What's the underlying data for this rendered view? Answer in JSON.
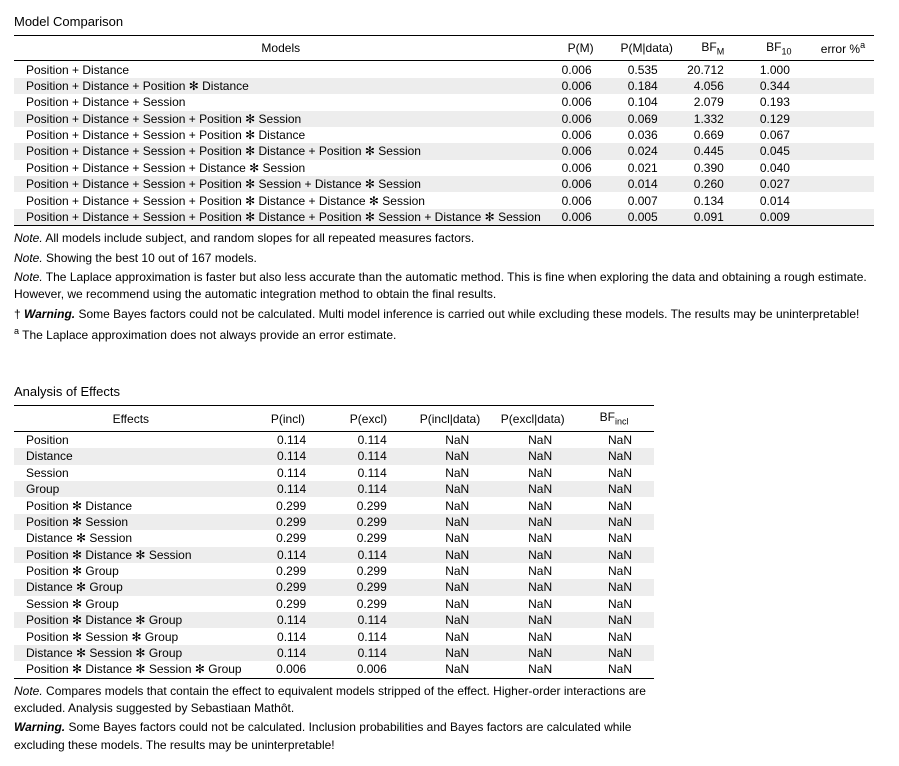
{
  "modelComparison": {
    "title": "Model Comparison",
    "headers": {
      "models": "Models",
      "pm": "P(M)",
      "pmdata": "P(M|data)",
      "bfm_pre": "BF",
      "bfm_sub": "M",
      "bf10_pre": "BF",
      "bf10_sub": "10",
      "error_pre": "error %",
      "error_sup": "a"
    },
    "rows": [
      {
        "name": "Position + Distance",
        "pm": "0.006",
        "pmd": "0.535",
        "bfm": "20.712",
        "bf10": "1.000",
        "err": ""
      },
      {
        "name": "Position + Distance + Position ✻ Distance",
        "pm": "0.006",
        "pmd": "0.184",
        "bfm": "4.056",
        "bf10": "0.344",
        "err": ""
      },
      {
        "name": "Position + Distance + Session",
        "pm": "0.006",
        "pmd": "0.104",
        "bfm": "2.079",
        "bf10": "0.193",
        "err": ""
      },
      {
        "name": "Position + Distance + Session + Position ✻ Session",
        "pm": "0.006",
        "pmd": "0.069",
        "bfm": "1.332",
        "bf10": "0.129",
        "err": ""
      },
      {
        "name": "Position + Distance + Session + Position ✻ Distance",
        "pm": "0.006",
        "pmd": "0.036",
        "bfm": "0.669",
        "bf10": "0.067",
        "err": ""
      },
      {
        "name": "Position + Distance + Session + Position ✻ Distance + Position ✻ Session",
        "pm": "0.006",
        "pmd": "0.024",
        "bfm": "0.445",
        "bf10": "0.045",
        "err": ""
      },
      {
        "name": "Position + Distance + Session + Distance ✻ Session",
        "pm": "0.006",
        "pmd": "0.021",
        "bfm": "0.390",
        "bf10": "0.040",
        "err": ""
      },
      {
        "name": "Position + Distance + Session + Position ✻ Session + Distance ✻ Session",
        "pm": "0.006",
        "pmd": "0.014",
        "bfm": "0.260",
        "bf10": "0.027",
        "err": ""
      },
      {
        "name": "Position + Distance + Session + Position ✻ Distance + Distance ✻ Session",
        "pm": "0.006",
        "pmd": "0.007",
        "bfm": "0.134",
        "bf10": "0.014",
        "err": ""
      },
      {
        "name": "Position + Distance + Session + Position ✻ Distance + Position ✻ Session + Distance ✻ Session",
        "pm": "0.006",
        "pmd": "0.005",
        "bfm": "0.091",
        "bf10": "0.009",
        "err": ""
      }
    ],
    "notes": {
      "n1_label": "Note.",
      "n1": " All models include subject, and random slopes for all repeated measures factors.",
      "n2_label": "Note.",
      "n2": " Showing the best 10 out of 167 models.",
      "n3_label": "Note.",
      "n3": " The Laplace approximation is faster but also less accurate than the automatic method. This is fine when exploring the data and obtaining a rough estimate. However, we recommend using the automatic integration method to obtain the final results.",
      "warn_dag": "†",
      "warn_label": " Warning.",
      "warn": " Some Bayes factors could not be calculated. Multi model inference is carried out while excluding these models. The results may be uninterpretable!",
      "foot_sup": "a",
      "foot": " The Laplace approximation does not always provide an error estimate."
    }
  },
  "effects": {
    "title": "Analysis of Effects",
    "headers": {
      "effects": "Effects",
      "pincl": "P(incl)",
      "pexcl": "P(excl)",
      "pincldata": "P(incl|data)",
      "pexcldata": "P(excl|data)",
      "bfincl_pre": "BF",
      "bfincl_sub": "incl"
    },
    "rows": [
      {
        "name": "Position",
        "pi": "0.114",
        "pe": "0.114",
        "pid": "NaN",
        "ped": "NaN",
        "bf": "NaN"
      },
      {
        "name": "Distance",
        "pi": "0.114",
        "pe": "0.114",
        "pid": "NaN",
        "ped": "NaN",
        "bf": "NaN"
      },
      {
        "name": "Session",
        "pi": "0.114",
        "pe": "0.114",
        "pid": "NaN",
        "ped": "NaN",
        "bf": "NaN"
      },
      {
        "name": "Group",
        "pi": "0.114",
        "pe": "0.114",
        "pid": "NaN",
        "ped": "NaN",
        "bf": "NaN"
      },
      {
        "name": "Position ✻ Distance",
        "pi": "0.299",
        "pe": "0.299",
        "pid": "NaN",
        "ped": "NaN",
        "bf": "NaN"
      },
      {
        "name": "Position ✻ Session",
        "pi": "0.299",
        "pe": "0.299",
        "pid": "NaN",
        "ped": "NaN",
        "bf": "NaN"
      },
      {
        "name": "Distance ✻ Session",
        "pi": "0.299",
        "pe": "0.299",
        "pid": "NaN",
        "ped": "NaN",
        "bf": "NaN"
      },
      {
        "name": "Position ✻ Distance ✻ Session",
        "pi": "0.114",
        "pe": "0.114",
        "pid": "NaN",
        "ped": "NaN",
        "bf": "NaN"
      },
      {
        "name": "Position ✻ Group",
        "pi": "0.299",
        "pe": "0.299",
        "pid": "NaN",
        "ped": "NaN",
        "bf": "NaN"
      },
      {
        "name": "Distance ✻ Group",
        "pi": "0.299",
        "pe": "0.299",
        "pid": "NaN",
        "ped": "NaN",
        "bf": "NaN"
      },
      {
        "name": "Session ✻ Group",
        "pi": "0.299",
        "pe": "0.299",
        "pid": "NaN",
        "ped": "NaN",
        "bf": "NaN"
      },
      {
        "name": "Position ✻ Distance ✻ Group",
        "pi": "0.114",
        "pe": "0.114",
        "pid": "NaN",
        "ped": "NaN",
        "bf": "NaN"
      },
      {
        "name": "Position ✻ Session ✻ Group",
        "pi": "0.114",
        "pe": "0.114",
        "pid": "NaN",
        "ped": "NaN",
        "bf": "NaN"
      },
      {
        "name": "Distance ✻ Session ✻ Group",
        "pi": "0.114",
        "pe": "0.114",
        "pid": "NaN",
        "ped": "NaN",
        "bf": "NaN"
      },
      {
        "name": "Position ✻ Distance ✻ Session ✻ Group",
        "pi": "0.006",
        "pe": "0.006",
        "pid": "NaN",
        "ped": "NaN",
        "bf": "NaN"
      }
    ],
    "notes": {
      "n1_label": "Note.",
      "n1": " Compares models that contain the effect to equivalent models stripped of the effect. Higher-order interactions are excluded. Analysis suggested by Sebastiaan Mathôt.",
      "warn_label": "Warning.",
      "warn": " Some Bayes factors could not be calculated. Inclusion probabilities and Bayes factors are calculated while excluding these models. The results may be uninterpretable!"
    }
  }
}
